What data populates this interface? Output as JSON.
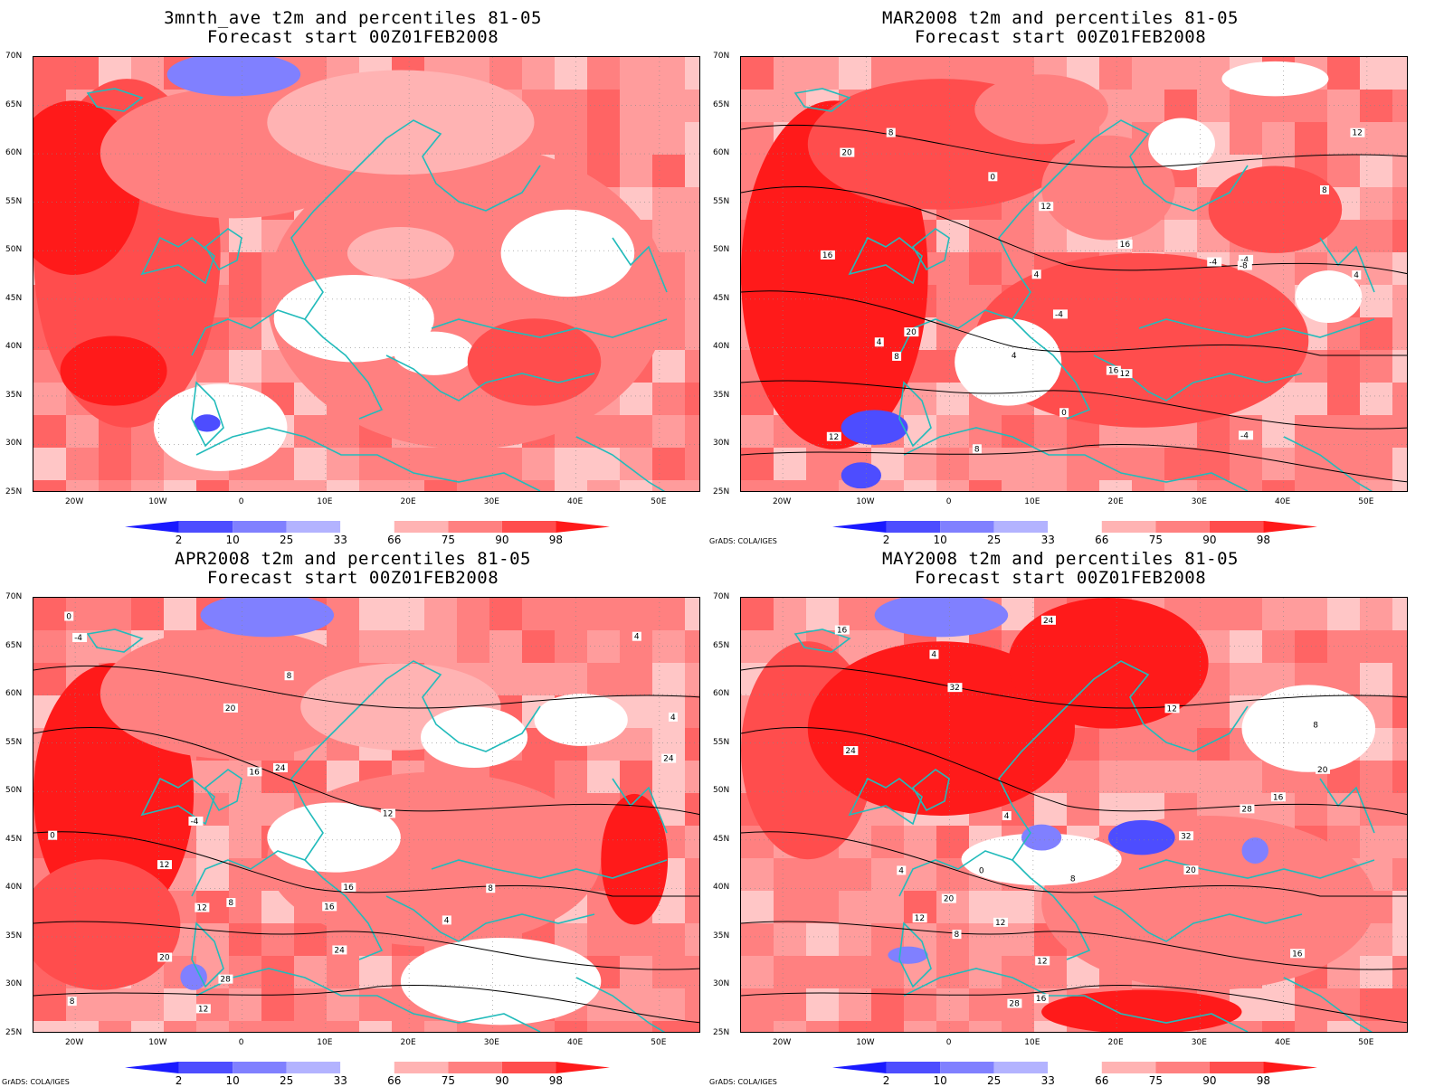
{
  "panels": [
    {
      "title1": "3mnth_ave t2m and percentiles 81-05",
      "title2": "Forecast start 00Z01FEB2008",
      "credit": ""
    },
    {
      "title1": "MAR2008 t2m and percentiles 81-05",
      "title2": "Forecast start 00Z01FEB2008",
      "credit": "GrADS: COLA/IGES"
    },
    {
      "title1": "APR2008 t2m and percentiles 81-05",
      "title2": "Forecast start 00Z01FEB2008",
      "credit": "GrADS: COLA/IGES"
    },
    {
      "title1": "MAY2008 t2m and percentiles 81-05",
      "title2": "Forecast start 00Z01FEB2008",
      "credit": "GrADS: COLA/IGES"
    }
  ],
  "lat_labels": [
    "70N",
    "65N",
    "60N",
    "55N",
    "50N",
    "45N",
    "40N",
    "35N",
    "30N",
    "25N"
  ],
  "lon_labels": [
    "20W",
    "10W",
    "0",
    "10E",
    "20E",
    "30E",
    "40E",
    "50E"
  ],
  "colorbar": {
    "labels": [
      "2",
      "10",
      "25",
      "33",
      "66",
      "75",
      "90",
      "98"
    ],
    "colors": [
      "#1a1aff",
      "#4d4dff",
      "#8080ff",
      "#b3b3ff",
      "#ffffff",
      "#ffb3b3",
      "#ff8080",
      "#ff4d4d",
      "#ff1a1a"
    ]
  },
  "contour_labels": {
    "panel2": [
      "-4",
      "-4",
      "-4",
      "-4",
      "0",
      "0",
      "4",
      "4",
      "4",
      "4",
      "8",
      "8",
      "8",
      "8",
      "12",
      "12",
      "12",
      "12",
      "16",
      "16",
      "16",
      "20",
      "20",
      "-8"
    ],
    "panel3": [
      "-4",
      "0",
      "0",
      "4",
      "4",
      "4",
      "8",
      "8",
      "8",
      "8",
      "12",
      "12",
      "12",
      "12",
      "16",
      "16",
      "16",
      "20",
      "20",
      "24",
      "24",
      "24",
      "28",
      "-4"
    ],
    "panel4": [
      "0",
      "4",
      "4",
      "4",
      "8",
      "8",
      "8",
      "12",
      "12",
      "12",
      "12",
      "16",
      "16",
      "16",
      "16",
      "20",
      "20",
      "20",
      "24",
      "24",
      "28",
      "28",
      "32",
      "32"
    ]
  }
}
